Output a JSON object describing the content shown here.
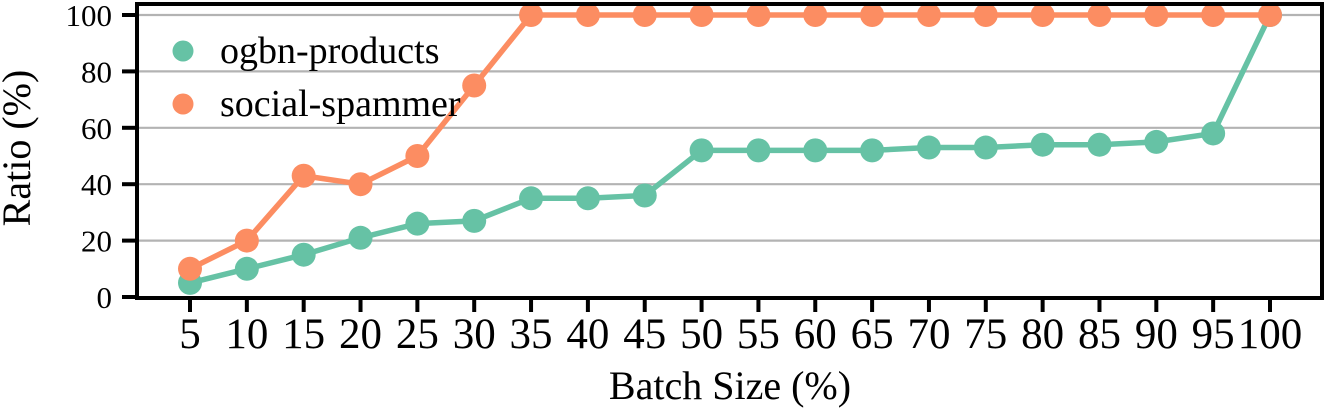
{
  "chart_data": {
    "type": "line",
    "title": "",
    "xlabel": "Batch Size (%)",
    "ylabel": "Ratio (%)",
    "x": [
      5,
      10,
      15,
      20,
      25,
      30,
      35,
      40,
      45,
      50,
      55,
      60,
      65,
      70,
      75,
      80,
      85,
      90,
      95,
      100
    ],
    "series": [
      {
        "name": "ogbn-products",
        "color": "#66c2a5",
        "values": [
          5,
          10,
          15,
          21,
          26,
          27,
          35,
          35,
          36,
          52,
          52,
          52,
          52,
          53,
          53,
          54,
          54,
          55,
          58,
          100
        ]
      },
      {
        "name": "social-spammer",
        "color": "#fc8d62",
        "values": [
          10,
          20,
          43,
          40,
          50,
          75,
          100,
          100,
          100,
          100,
          100,
          100,
          100,
          100,
          100,
          100,
          100,
          100,
          100,
          100
        ]
      }
    ],
    "xticks": [
      5,
      10,
      15,
      20,
      25,
      30,
      35,
      40,
      45,
      50,
      55,
      60,
      65,
      70,
      75,
      80,
      85,
      90,
      95,
      100
    ],
    "yticks": [
      0,
      20,
      40,
      60,
      80,
      100
    ],
    "xlim": [
      0.3,
      104.6
    ],
    "ylim": [
      0,
      100
    ],
    "grid": "horizontal",
    "legend_position": "upper-left",
    "legend_entries": [
      "ogbn-products",
      "social-spammer"
    ],
    "colors": {
      "gridline": "#b3b3b3",
      "axis": "#000000",
      "background": "#ffffff"
    }
  }
}
